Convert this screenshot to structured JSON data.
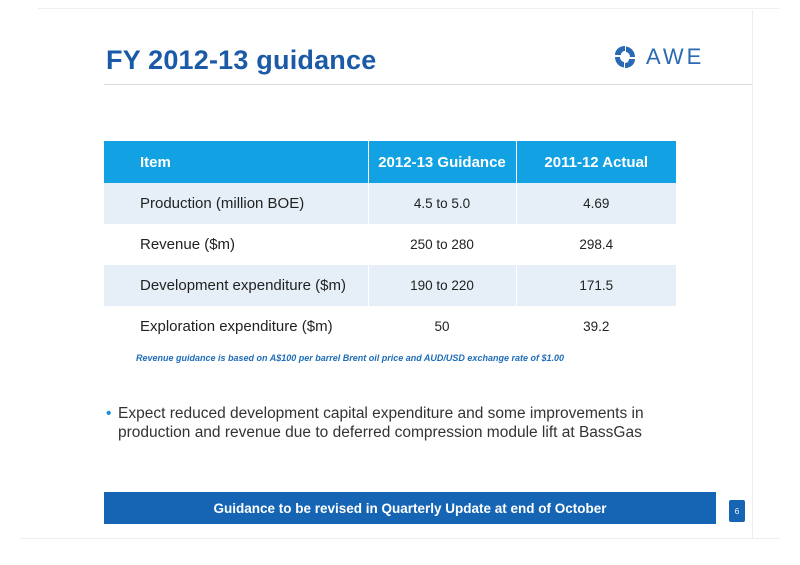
{
  "slide": {
    "title": "FY 2012-13 guidance",
    "logo_text": "AWE",
    "logo_icon": "awe-logo-icon",
    "page_number": "6"
  },
  "table": {
    "headers": [
      "Item",
      "2012-13 Guidance",
      "2011-12 Actual"
    ],
    "rows": [
      {
        "item": "Production (million BOE)",
        "guidance": "4.5 to 5.0",
        "actual": "4.69"
      },
      {
        "item": "Revenue ($m)",
        "guidance": "250 to 280",
        "actual": "298.4"
      },
      {
        "item": "Development expenditure ($m)",
        "guidance": "190 to 220",
        "actual": "171.5"
      },
      {
        "item": "Exploration expenditure ($m)",
        "guidance": "50",
        "actual": "39.2"
      }
    ]
  },
  "footnote": "Revenue guidance is based on A$100 per barrel Brent oil price and AUD/USD exchange rate of $1.00",
  "bullets": [
    "Expect reduced development capital expenditure and some improvements in production and revenue due to deferred compression module lift at BassGas"
  ],
  "banner": "Guidance to be revised in Quarterly Update at end of October",
  "colors": {
    "title": "#1a5aa6",
    "header_bg": "#12a2e4",
    "row_shade": "#e6eff8",
    "banner_bg": "#1565b4",
    "footnote": "#1d6cb8"
  }
}
